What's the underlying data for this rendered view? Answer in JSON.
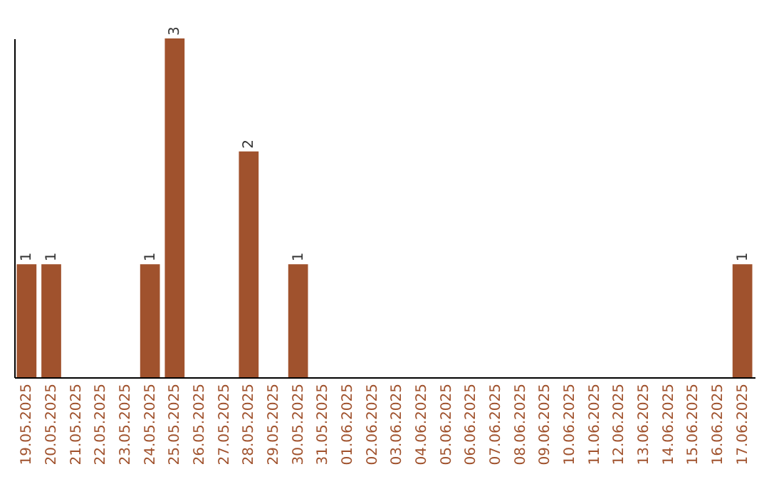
{
  "chart_data": {
    "type": "bar",
    "categories": [
      "19.05.2025",
      "20.05.2025",
      "21.05.2025",
      "22.05.2025",
      "23.05.2025",
      "24.05.2025",
      "25.05.2025",
      "26.05.2025",
      "27.05.2025",
      "28.05.2025",
      "29.05.2025",
      "30.05.2025",
      "31.05.2025",
      "01.06.2025",
      "02.06.2025",
      "03.06.2025",
      "04.06.2025",
      "05.06.2025",
      "06.06.2025",
      "07.06.2025",
      "08.06.2025",
      "09.06.2025",
      "10.06.2025",
      "11.06.2025",
      "12.06.2025",
      "13.06.2025",
      "14.06.2025",
      "15.06.2025",
      "16.06.2025",
      "17.06.2025"
    ],
    "values": [
      1,
      1,
      0,
      0,
      0,
      1,
      3,
      0,
      0,
      2,
      0,
      1,
      0,
      0,
      0,
      0,
      0,
      0,
      0,
      0,
      0,
      0,
      0,
      0,
      0,
      0,
      0,
      0,
      0,
      1
    ],
    "value_labels": [
      "1",
      "1",
      null,
      null,
      null,
      "1",
      "3",
      null,
      null,
      "2",
      null,
      "1",
      null,
      null,
      null,
      null,
      null,
      null,
      null,
      null,
      null,
      null,
      null,
      null,
      null,
      null,
      null,
      null,
      null,
      "1"
    ],
    "color": "#a0522d",
    "grid": false,
    "tick_labels": "x"
  }
}
